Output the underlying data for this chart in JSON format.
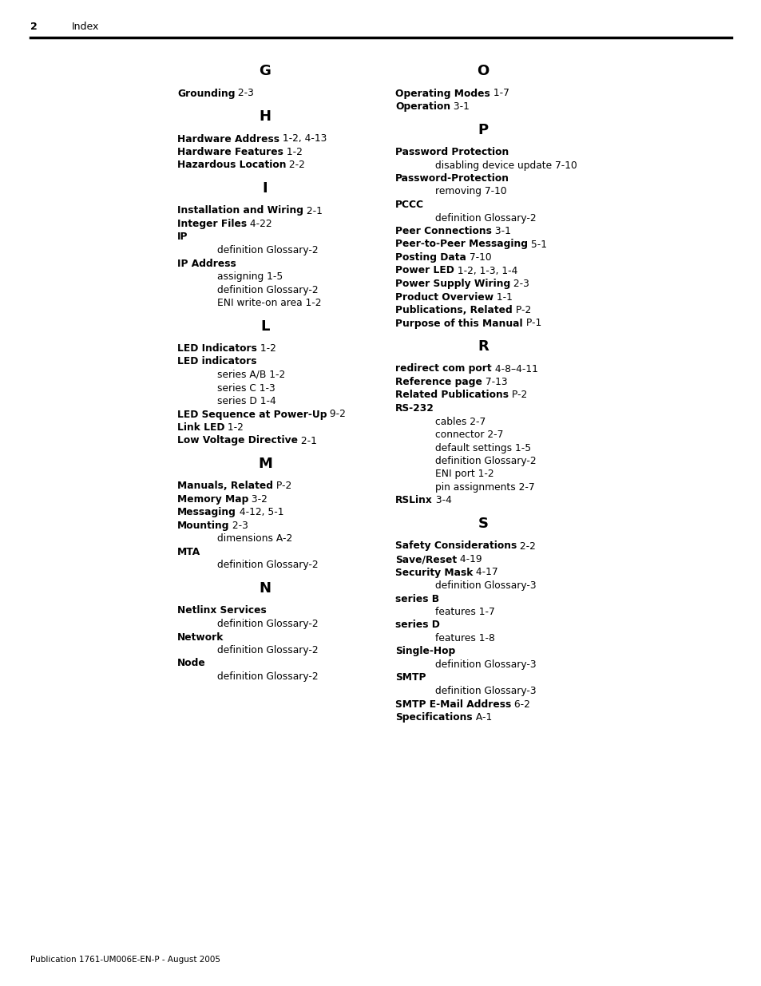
{
  "page_number": "2",
  "page_label": "Index",
  "footer": "Publication 1761-UM006E-EN-P - August 2005",
  "left_column": [
    {
      "type": "letter_header",
      "text": "G"
    },
    {
      "type": "entry_bold",
      "text": "Grounding",
      "page": "2-3"
    },
    {
      "type": "spacer"
    },
    {
      "type": "letter_header",
      "text": "H"
    },
    {
      "type": "entry_bold",
      "text": "Hardware Address",
      "page": "1-2, 4-13"
    },
    {
      "type": "entry_bold",
      "text": "Hardware Features",
      "page": "1-2"
    },
    {
      "type": "entry_bold",
      "text": "Hazardous Location",
      "page": "2-2"
    },
    {
      "type": "spacer"
    },
    {
      "type": "letter_header",
      "text": "I"
    },
    {
      "type": "entry_bold",
      "text": "Installation and Wiring",
      "page": "2-1"
    },
    {
      "type": "entry_bold",
      "text": "Integer Files",
      "page": "4-22"
    },
    {
      "type": "entry_bold_nopage",
      "text": "IP"
    },
    {
      "type": "entry_indent",
      "text": "definition Glossary-2"
    },
    {
      "type": "entry_bold_nopage",
      "text": "IP Address"
    },
    {
      "type": "entry_indent",
      "text": "assigning 1-5"
    },
    {
      "type": "entry_indent",
      "text": "definition Glossary-2"
    },
    {
      "type": "entry_indent",
      "text": "ENI write-on area 1-2"
    },
    {
      "type": "spacer"
    },
    {
      "type": "letter_header",
      "text": "L"
    },
    {
      "type": "entry_bold",
      "text": "LED Indicators",
      "page": "1-2"
    },
    {
      "type": "entry_bold_nopage",
      "text": "LED indicators"
    },
    {
      "type": "entry_indent",
      "text": "series A/B 1-2"
    },
    {
      "type": "entry_indent",
      "text": "series C 1-3"
    },
    {
      "type": "entry_indent",
      "text": "series D 1-4"
    },
    {
      "type": "entry_bold",
      "text": "LED Sequence at Power-Up",
      "page": "9-2"
    },
    {
      "type": "entry_bold",
      "text": "Link LED",
      "page": "1-2"
    },
    {
      "type": "entry_bold",
      "text": "Low Voltage Directive",
      "page": "2-1"
    },
    {
      "type": "spacer"
    },
    {
      "type": "letter_header",
      "text": "M"
    },
    {
      "type": "entry_bold",
      "text": "Manuals, Related",
      "page": "P-2"
    },
    {
      "type": "entry_bold",
      "text": "Memory Map",
      "page": "3-2"
    },
    {
      "type": "entry_bold",
      "text": "Messaging",
      "page": "4-12, 5-1"
    },
    {
      "type": "entry_bold",
      "text": "Mounting",
      "page": "2-3"
    },
    {
      "type": "entry_indent",
      "text": "dimensions A-2"
    },
    {
      "type": "entry_bold_nopage",
      "text": "MTA"
    },
    {
      "type": "entry_indent",
      "text": "definition Glossary-2"
    },
    {
      "type": "spacer"
    },
    {
      "type": "letter_header",
      "text": "N"
    },
    {
      "type": "entry_bold_nopage",
      "text": "Netlinx Services"
    },
    {
      "type": "entry_indent",
      "text": "definition Glossary-2"
    },
    {
      "type": "entry_bold_nopage",
      "text": "Network"
    },
    {
      "type": "entry_indent",
      "text": "definition Glossary-2"
    },
    {
      "type": "entry_bold_nopage",
      "text": "Node"
    },
    {
      "type": "entry_indent",
      "text": "definition Glossary-2"
    }
  ],
  "right_column": [
    {
      "type": "letter_header",
      "text": "O"
    },
    {
      "type": "entry_bold",
      "text": "Operating Modes",
      "page": "1-7"
    },
    {
      "type": "entry_bold",
      "text": "Operation",
      "page": "3-1"
    },
    {
      "type": "spacer"
    },
    {
      "type": "letter_header",
      "text": "P"
    },
    {
      "type": "entry_bold_nopage",
      "text": "Password Protection"
    },
    {
      "type": "entry_indent",
      "text": "disabling device update 7-10"
    },
    {
      "type": "entry_bold_nopage",
      "text": "Password-Protection"
    },
    {
      "type": "entry_indent",
      "text": "removing 7-10"
    },
    {
      "type": "entry_bold_nopage",
      "text": "PCCC"
    },
    {
      "type": "entry_indent",
      "text": "definition Glossary-2"
    },
    {
      "type": "entry_bold",
      "text": "Peer Connections",
      "page": "3-1"
    },
    {
      "type": "entry_bold",
      "text": "Peer-to-Peer Messaging",
      "page": "5-1"
    },
    {
      "type": "entry_bold",
      "text": "Posting Data",
      "page": "7-10"
    },
    {
      "type": "entry_bold",
      "text": "Power LED",
      "page": "1-2, 1-3, 1-4"
    },
    {
      "type": "entry_bold",
      "text": "Power Supply Wiring",
      "page": "2-3"
    },
    {
      "type": "entry_bold",
      "text": "Product Overview",
      "page": "1-1"
    },
    {
      "type": "entry_bold",
      "text": "Publications, Related",
      "page": "P-2"
    },
    {
      "type": "entry_bold",
      "text": "Purpose of this Manual",
      "page": "P-1"
    },
    {
      "type": "spacer"
    },
    {
      "type": "letter_header",
      "text": "R"
    },
    {
      "type": "entry_bold",
      "text": "redirect com port",
      "page": "4-8–4-11"
    },
    {
      "type": "entry_bold",
      "text": "Reference page",
      "page": "7-13"
    },
    {
      "type": "entry_bold",
      "text": "Related Publications",
      "page": "P-2"
    },
    {
      "type": "entry_bold_nopage",
      "text": "RS-232"
    },
    {
      "type": "entry_indent",
      "text": "cables 2-7"
    },
    {
      "type": "entry_indent",
      "text": "connector 2-7"
    },
    {
      "type": "entry_indent",
      "text": "default settings 1-5"
    },
    {
      "type": "entry_indent",
      "text": "definition Glossary-2"
    },
    {
      "type": "entry_indent",
      "text": "ENI port 1-2"
    },
    {
      "type": "entry_indent",
      "text": "pin assignments 2-7"
    },
    {
      "type": "entry_bold",
      "text": "RSLinx",
      "page": "3-4"
    },
    {
      "type": "spacer"
    },
    {
      "type": "letter_header",
      "text": "S"
    },
    {
      "type": "entry_bold",
      "text": "Safety Considerations",
      "page": "2-2"
    },
    {
      "type": "entry_bold",
      "text": "Save/Reset",
      "page": "4-19"
    },
    {
      "type": "entry_bold",
      "text": "Security Mask",
      "page": "4-17"
    },
    {
      "type": "entry_indent",
      "text": "definition Glossary-3"
    },
    {
      "type": "entry_bold_nopage",
      "text": "series B"
    },
    {
      "type": "entry_indent",
      "text": "features 1-7"
    },
    {
      "type": "entry_bold_nopage",
      "text": "series D"
    },
    {
      "type": "entry_indent",
      "text": "features 1-8"
    },
    {
      "type": "entry_bold_nopage",
      "text": "Single-Hop"
    },
    {
      "type": "entry_indent",
      "text": "definition Glossary-3"
    },
    {
      "type": "entry_bold_nopage",
      "text": "SMTP"
    },
    {
      "type": "entry_indent",
      "text": "definition Glossary-3"
    },
    {
      "type": "entry_bold",
      "text": "SMTP E-Mail Address",
      "page": "6-2"
    },
    {
      "type": "entry_bold",
      "text": "Specifications",
      "page": "A-1"
    }
  ],
  "bg_color": "#ffffff",
  "text_color": "#000000"
}
